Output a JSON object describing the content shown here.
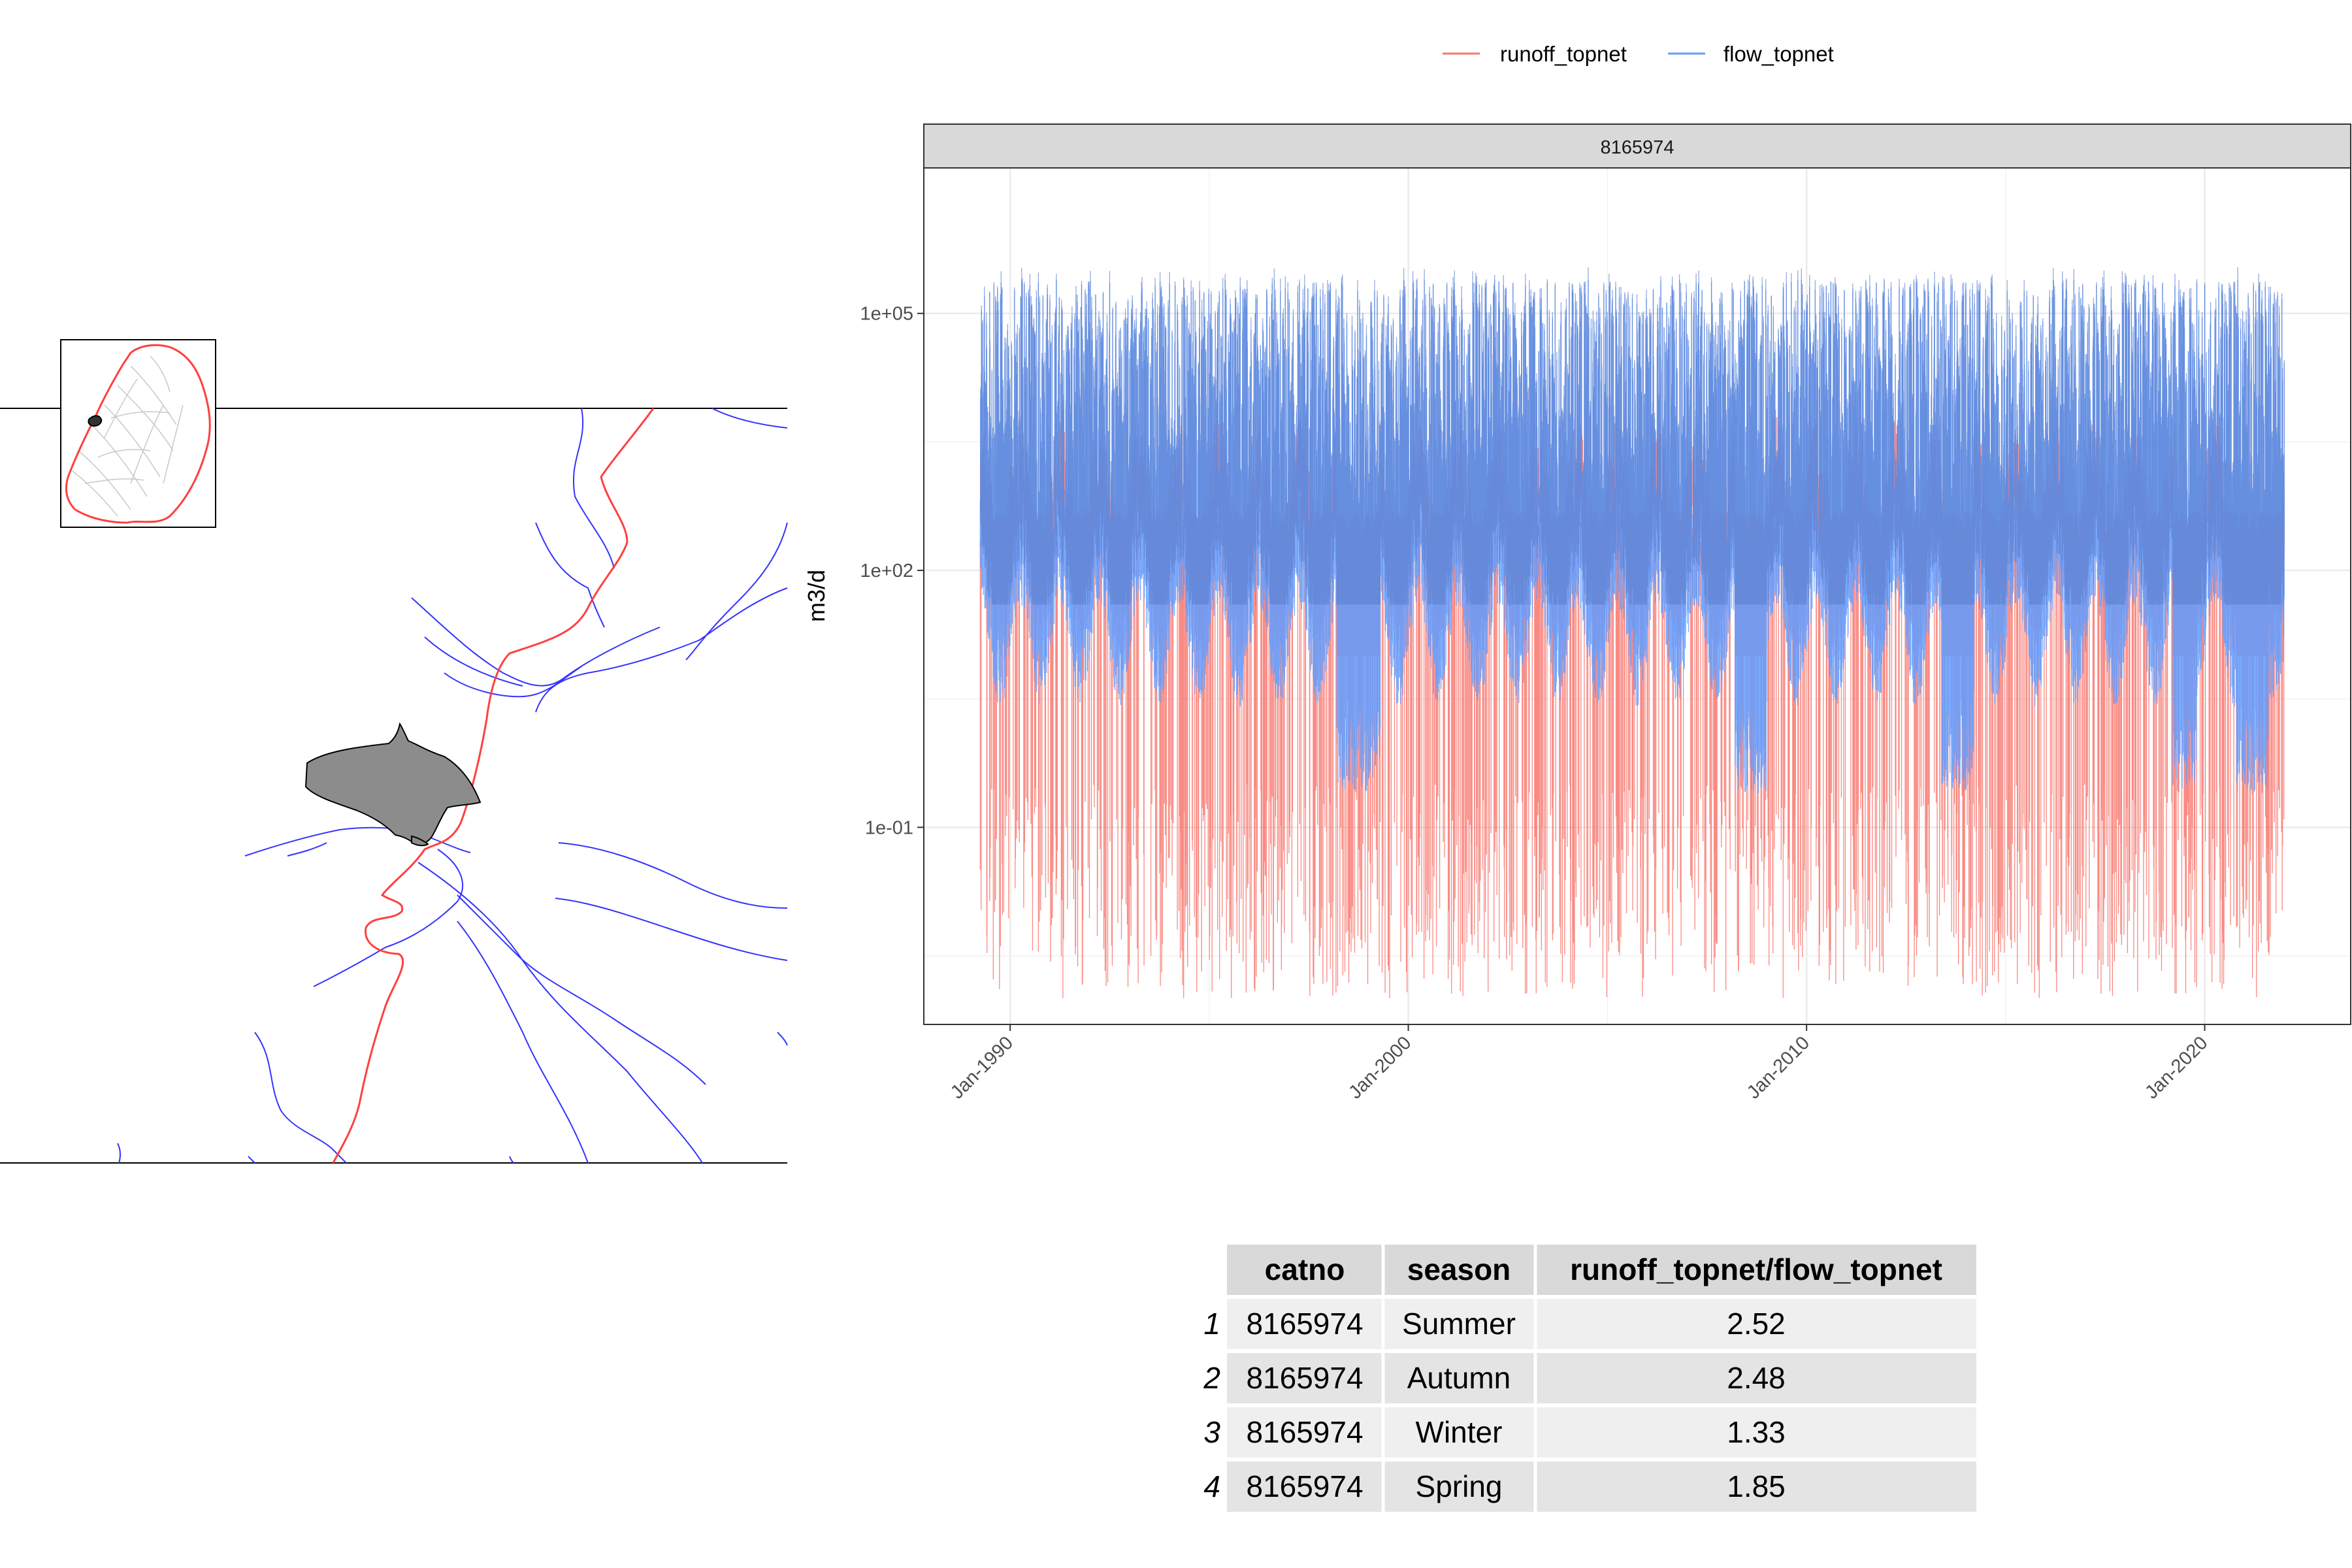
{
  "map": {
    "colors": {
      "stream": "#3333ff",
      "boundary": "#ff4040",
      "catchment_fill": "#8c8c8c",
      "inset_lines": "#c8c8c8"
    }
  },
  "chart_data": {
    "type": "line",
    "facet_label": "8165974",
    "ylabel": "m3/d",
    "xlabel": "",
    "y_scale": "log10",
    "ylim": [
      0.0005,
      5000000
    ],
    "x_range": [
      "1987-11-01",
      "2023-09-01"
    ],
    "x_ticks": [
      "Jan-1990",
      "Jan-2000",
      "Jan-2010",
      "Jan-2020"
    ],
    "y_ticks": [
      "1e-01",
      "1e+02",
      "1e+05"
    ],
    "grid": true,
    "legend_position": "top",
    "series": [
      {
        "name": "runoff_topnet",
        "color": "#f8766d"
      },
      {
        "name": "flow_topnet",
        "color": "#619cff"
      }
    ]
  },
  "table": {
    "headers": [
      "catno",
      "season",
      "runoff_topnet/flow_topnet"
    ],
    "rows": [
      {
        "index": "1",
        "catno": "8165974",
        "season": "Summer",
        "ratio": "2.52"
      },
      {
        "index": "2",
        "catno": "8165974",
        "season": "Autumn",
        "ratio": "2.48"
      },
      {
        "index": "3",
        "catno": "8165974",
        "season": "Winter",
        "ratio": "1.33"
      },
      {
        "index": "4",
        "catno": "8165974",
        "season": "Spring",
        "ratio": "1.85"
      }
    ]
  }
}
